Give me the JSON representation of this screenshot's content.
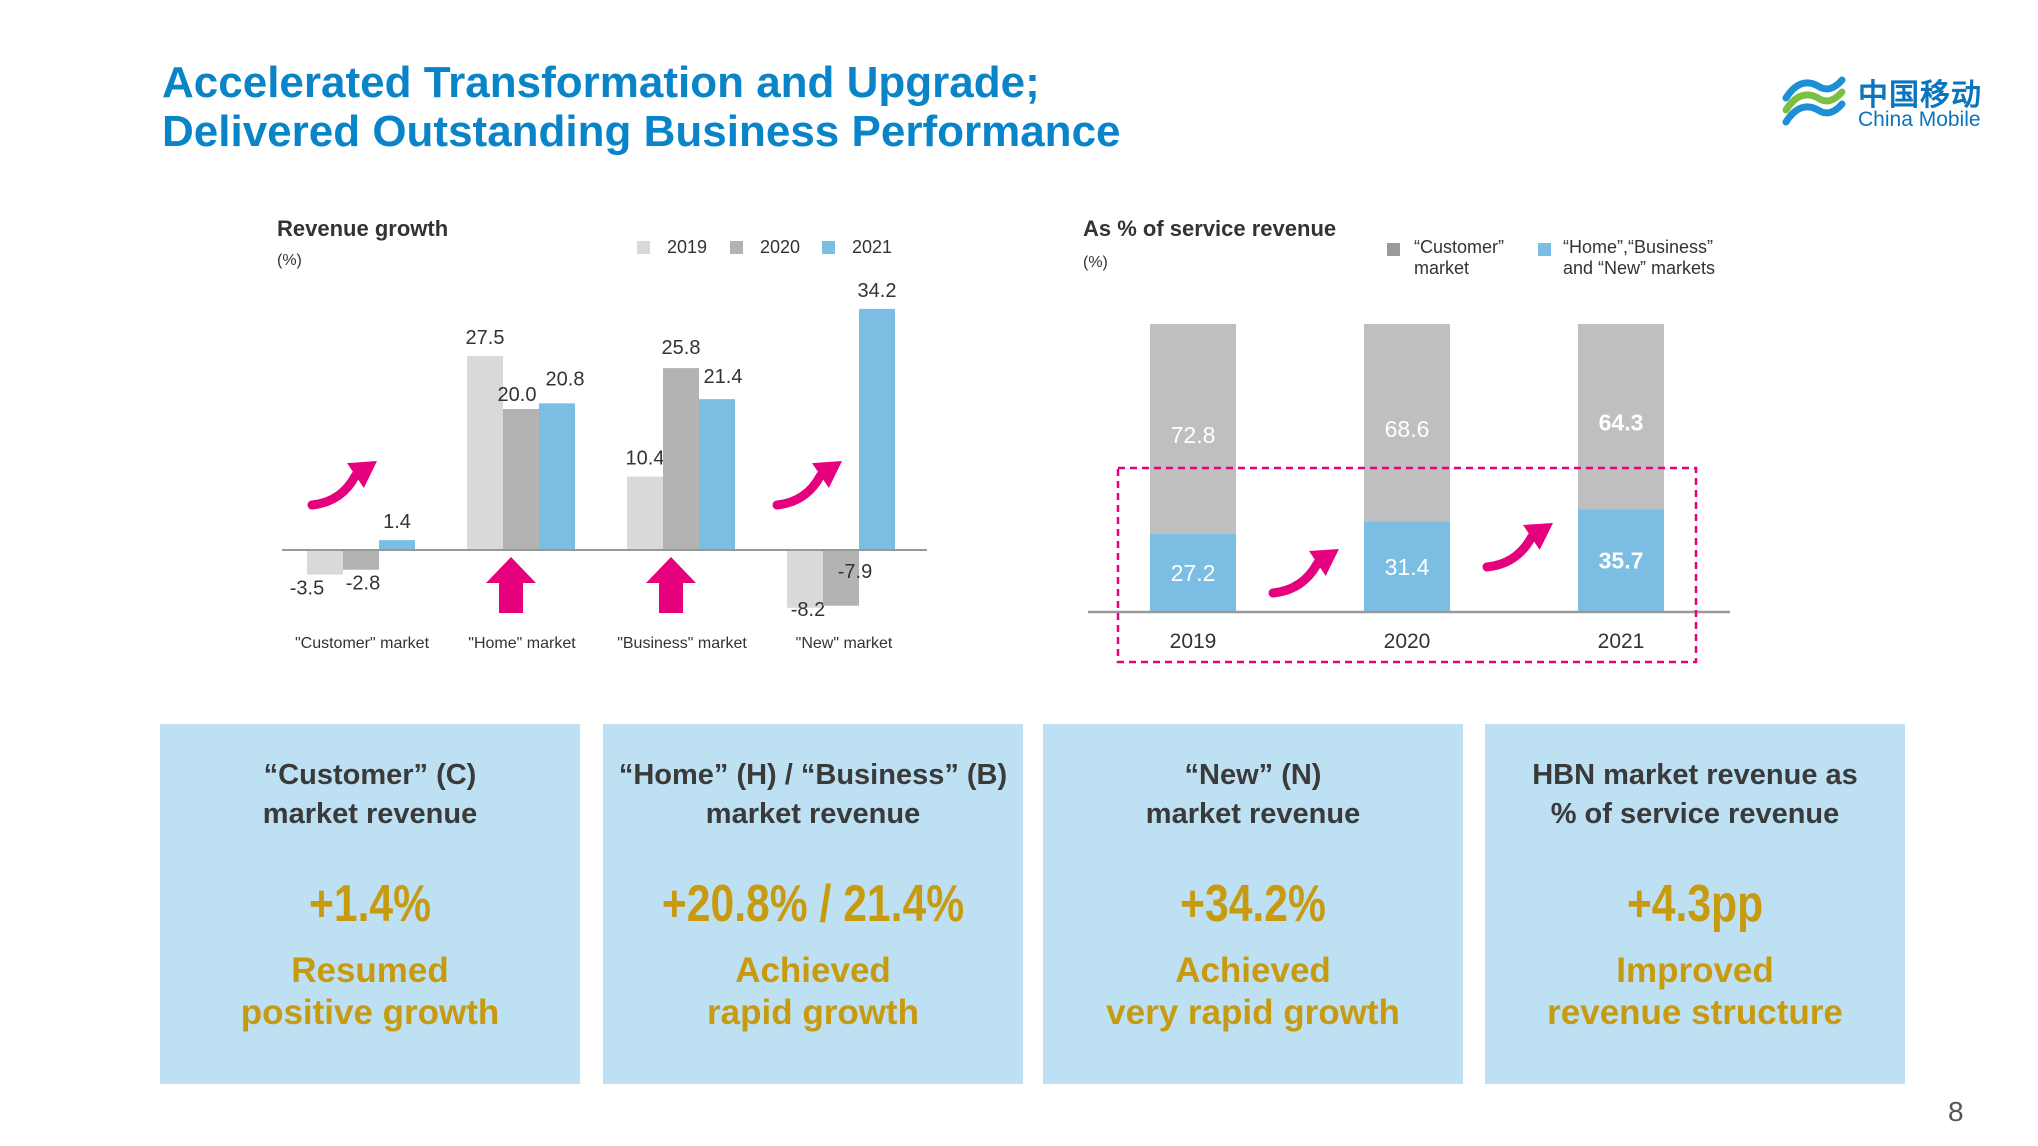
{
  "slide": {
    "title_line1": "Accelerated Transformation and Upgrade;",
    "title_line2": "Delivered Outstanding Business Performance",
    "page_number": "8"
  },
  "logo": {
    "cn": "中国移动",
    "en": "China Mobile"
  },
  "colors": {
    "title": "#0a84c8",
    "c2019": "#d9d9d9",
    "c2020": "#b3b3b3",
    "c2021": "#7bbde3",
    "share_customer": "#bfbfbf",
    "share_hbn": "#7bbde3",
    "arrow": "#e6007e",
    "box_bg": "#bde0f2",
    "highlight": "#c89a0f",
    "dash": "#e6007e"
  },
  "chart_data": [
    {
      "type": "bar",
      "title": "Revenue growth",
      "unit": "(%)",
      "categories": [
        "\"Customer\" market",
        "\"Home\" market",
        "\"Business\" market",
        "\"New\" market"
      ],
      "series": [
        {
          "name": "2019",
          "values": [
            -3.5,
            27.5,
            10.4,
            -8.2
          ]
        },
        {
          "name": "2020",
          "values": [
            -2.8,
            20.0,
            25.8,
            -7.9
          ]
        },
        {
          "name": "2021",
          "values": [
            1.4,
            20.8,
            21.4,
            34.2
          ]
        }
      ],
      "legend": "top",
      "grid": false
    },
    {
      "type": "bar",
      "stacked": true,
      "title": "As % of service revenue",
      "unit": "(%)",
      "categories": [
        "2019",
        "2020",
        "2021"
      ],
      "series": [
        {
          "name": "“Home”,“Business” and “New” markets",
          "legend_line1": "“Home”,“Business”",
          "legend_line2": "and “New” markets",
          "values": [
            27.2,
            31.4,
            35.7
          ]
        },
        {
          "name": "“Customer” market",
          "legend_line1": "“Customer”",
          "legend_line2": "market",
          "values": [
            72.8,
            68.6,
            64.3
          ]
        }
      ],
      "legend": "top",
      "grid": false
    }
  ],
  "boxes": [
    {
      "head": "“Customer” (C)\nmarket revenue",
      "value": "+1.4%",
      "desc": "Resumed\npositive growth"
    },
    {
      "head": "“Home” (H) / “Business” (B)\nmarket revenue",
      "value": "+20.8% / 21.4%",
      "desc": "Achieved\nrapid growth"
    },
    {
      "head": "“New” (N)\nmarket revenue",
      "value": "+34.2%",
      "desc": "Achieved\nvery rapid growth"
    },
    {
      "head": "HBN market revenue as\n% of service revenue",
      "value": "+4.3pp",
      "desc": "Improved\nrevenue structure"
    }
  ]
}
